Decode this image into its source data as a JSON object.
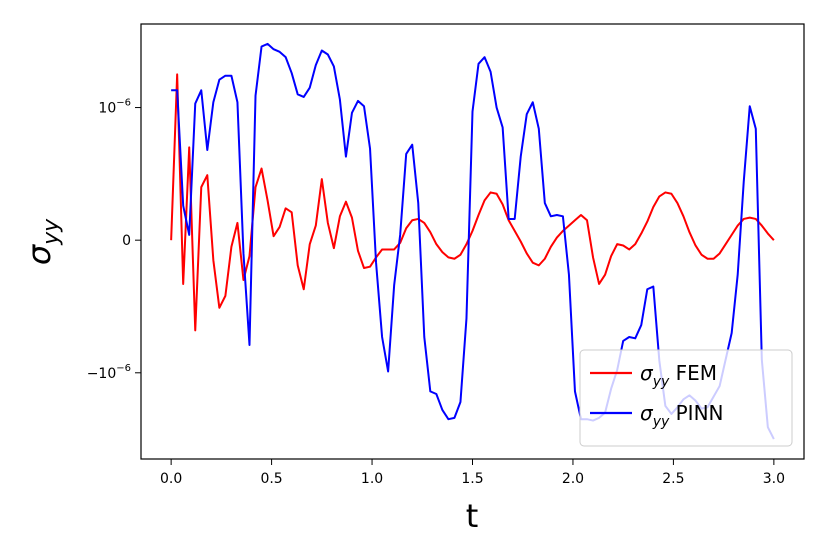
{
  "chart_data": {
    "type": "line",
    "xlabel": "t",
    "ylabel": "σ",
    "ylabel_sub": "yy",
    "xlim": [
      -0.15,
      3.15
    ],
    "ylim": [
      -1.65e-06,
      1.63e-06
    ],
    "x_ticks": [
      0.0,
      0.5,
      1.0,
      1.5,
      2.0,
      2.5,
      3.0
    ],
    "x_tick_labels": [
      "0.0",
      "0.5",
      "1.0",
      "1.5",
      "2.0",
      "2.5",
      "3.0"
    ],
    "y_ticks": [
      -1e-06,
      0,
      1e-06
    ],
    "y_tick_labels": [
      "−10",
      "0",
      "10"
    ],
    "y_tick_exponent": "−6",
    "legend_position": "lower right",
    "grid": false,
    "series": [
      {
        "name": "σ FEM",
        "name_base": "σ",
        "name_sub": "yy",
        "name_suffix": " FEM",
        "color": "#ff0000",
        "x": [
          0.0,
          0.03,
          0.06,
          0.09,
          0.12,
          0.15,
          0.18,
          0.21,
          0.24,
          0.27,
          0.3,
          0.33,
          0.36,
          0.39,
          0.42,
          0.45,
          0.48,
          0.51,
          0.54,
          0.57,
          0.6,
          0.63,
          0.66,
          0.69,
          0.72,
          0.75,
          0.78,
          0.81,
          0.84,
          0.87,
          0.9,
          0.93,
          0.96,
          0.99,
          1.02,
          1.05,
          1.08,
          1.11,
          1.14,
          1.17,
          1.2,
          1.23,
          1.26,
          1.29,
          1.32,
          1.35,
          1.38,
          1.41,
          1.44,
          1.47,
          1.5,
          1.53,
          1.56,
          1.59,
          1.62,
          1.65,
          1.68,
          1.71,
          1.74,
          1.77,
          1.8,
          1.83,
          1.86,
          1.89,
          1.92,
          1.95,
          1.98,
          2.01,
          2.04,
          2.07,
          2.1,
          2.13,
          2.16,
          2.19,
          2.22,
          2.25,
          2.28,
          2.31,
          2.34,
          2.37,
          2.4,
          2.43,
          2.46,
          2.49,
          2.52,
          2.55,
          2.58,
          2.61,
          2.64,
          2.67,
          2.7,
          2.73,
          2.76,
          2.79,
          2.82,
          2.85,
          2.88,
          2.91,
          2.94,
          2.97,
          3.0
        ],
        "y": [
          0.0,
          1.25e-06,
          -3.3e-07,
          7e-07,
          -6.8e-07,
          4e-07,
          4.9e-07,
          -1.5e-07,
          -5.1e-07,
          -4.2e-07,
          -5e-08,
          1.3e-07,
          -3e-07,
          -1.2e-07,
          4e-07,
          5.4e-07,
          3e-07,
          3e-08,
          1e-07,
          2.4e-07,
          2.1e-07,
          -1.9e-07,
          -3.7e-07,
          -3e-08,
          1.1e-07,
          4.6e-07,
          1.3e-07,
          -6e-08,
          1.8e-07,
          2.9e-07,
          1.7e-07,
          -8e-08,
          -2.1e-07,
          -2e-07,
          -1.3e-07,
          -7e-08,
          -7e-08,
          -7e-08,
          -2e-08,
          9e-08,
          1.5e-07,
          1.6e-07,
          1.3e-07,
          6e-08,
          -3e-08,
          -9e-08,
          -1.3e-07,
          -1.4e-07,
          -1.1e-07,
          -3e-08,
          7e-08,
          1.9e-07,
          3e-07,
          3.6e-07,
          3.5e-07,
          2.7e-07,
          1.5e-07,
          7e-08,
          -1e-08,
          -1e-07,
          -1.7e-07,
          -1.9e-07,
          -1.4e-07,
          -5e-08,
          2e-08,
          7e-08,
          1.1e-07,
          1.5e-07,
          1.9e-07,
          1.5e-07,
          -1.3e-07,
          -3.3e-07,
          -2.6e-07,
          -1.2e-07,
          -3e-08,
          -4e-08,
          -7e-08,
          -3e-08,
          5e-08,
          1.4e-07,
          2.5e-07,
          3.3e-07,
          3.6e-07,
          3.5e-07,
          2.8e-07,
          1.8e-07,
          6e-08,
          -4e-08,
          -1.1e-07,
          -1.4e-07,
          -1.4e-07,
          -1e-07,
          -3e-08,
          4e-08,
          1.1e-07,
          1.6e-07,
          1.7e-07,
          1.6e-07,
          1.1e-07,
          5e-08,
          0.0
        ]
      },
      {
        "name": "σ PINN",
        "name_base": "σ",
        "name_sub": "yy",
        "name_suffix": " PINN",
        "color": "#0000ff",
        "x": [
          0.0,
          0.03,
          0.06,
          0.09,
          0.12,
          0.15,
          0.18,
          0.21,
          0.24,
          0.27,
          0.3,
          0.33,
          0.36,
          0.39,
          0.42,
          0.45,
          0.48,
          0.51,
          0.54,
          0.57,
          0.6,
          0.63,
          0.66,
          0.69,
          0.72,
          0.75,
          0.78,
          0.81,
          0.84,
          0.87,
          0.9,
          0.93,
          0.96,
          0.99,
          1.02,
          1.05,
          1.08,
          1.11,
          1.14,
          1.17,
          1.2,
          1.23,
          1.26,
          1.29,
          1.32,
          1.35,
          1.38,
          1.41,
          1.44,
          1.47,
          1.5,
          1.53,
          1.56,
          1.59,
          1.62,
          1.65,
          1.68,
          1.71,
          1.74,
          1.77,
          1.8,
          1.83,
          1.86,
          1.89,
          1.92,
          1.95,
          1.98,
          2.01,
          2.04,
          2.07,
          2.1,
          2.13,
          2.16,
          2.19,
          2.22,
          2.25,
          2.28,
          2.31,
          2.34,
          2.37,
          2.4,
          2.43,
          2.46,
          2.49,
          2.52,
          2.55,
          2.58,
          2.61,
          2.64,
          2.67,
          2.7,
          2.73,
          2.76,
          2.79,
          2.82,
          2.85,
          2.88,
          2.91,
          2.94,
          2.97,
          3.0
        ],
        "y": [
          1.13e-06,
          1.13e-06,
          2.6e-07,
          4e-08,
          1.03e-06,
          1.13e-06,
          6.8e-07,
          1.04e-06,
          1.21e-06,
          1.24e-06,
          1.24e-06,
          1.04e-06,
          -1e-07,
          -7.9e-07,
          1.09e-06,
          1.46e-06,
          1.48e-06,
          1.44e-06,
          1.42e-06,
          1.38e-06,
          1.26e-06,
          1.1e-06,
          1.08e-06,
          1.15e-06,
          1.32e-06,
          1.43e-06,
          1.4e-06,
          1.31e-06,
          1.06e-06,
          6.3e-07,
          9.6e-07,
          1.05e-06,
          1.01e-06,
          6.9e-07,
          -1.7e-07,
          -7.3e-07,
          -9.9e-07,
          -3.4e-07,
          4e-08,
          6.5e-07,
          7.2e-07,
          2.8e-07,
          -7.3e-07,
          -1.14e-06,
          -1.16e-06,
          -1.28e-06,
          -1.35e-06,
          -1.34e-06,
          -1.22e-06,
          -5.9e-07,
          9.7e-07,
          1.33e-06,
          1.38e-06,
          1.27e-06,
          1e-06,
          8.5e-07,
          1.6e-07,
          1.6e-07,
          6.3e-07,
          9.5e-07,
          1.04e-06,
          8.4e-07,
          2.8e-07,
          1.8e-07,
          1.9e-07,
          1.8e-07,
          -2.6e-07,
          -1.14e-06,
          -1.35e-06,
          -1.35e-06,
          -1.36e-06,
          -1.34e-06,
          -1.3e-06,
          -1.12e-06,
          -9.8e-07,
          -7.6e-07,
          -7.3e-07,
          -7.4e-07,
          -6.4e-07,
          -3.7e-07,
          -3.5e-07,
          -9.1e-07,
          -1.25e-06,
          -1.31e-06,
          -1.26e-06,
          -1.2e-06,
          -1.17e-06,
          -1.21e-06,
          -1.27e-06,
          -1.26e-06,
          -1.18e-06,
          -1.1e-06,
          -9e-07,
          -7e-07,
          -2.6e-07,
          4.4e-07,
          1.01e-06,
          8.4e-07,
          -9e-07,
          -1.41e-06,
          -1.5e-06
        ]
      }
    ]
  }
}
